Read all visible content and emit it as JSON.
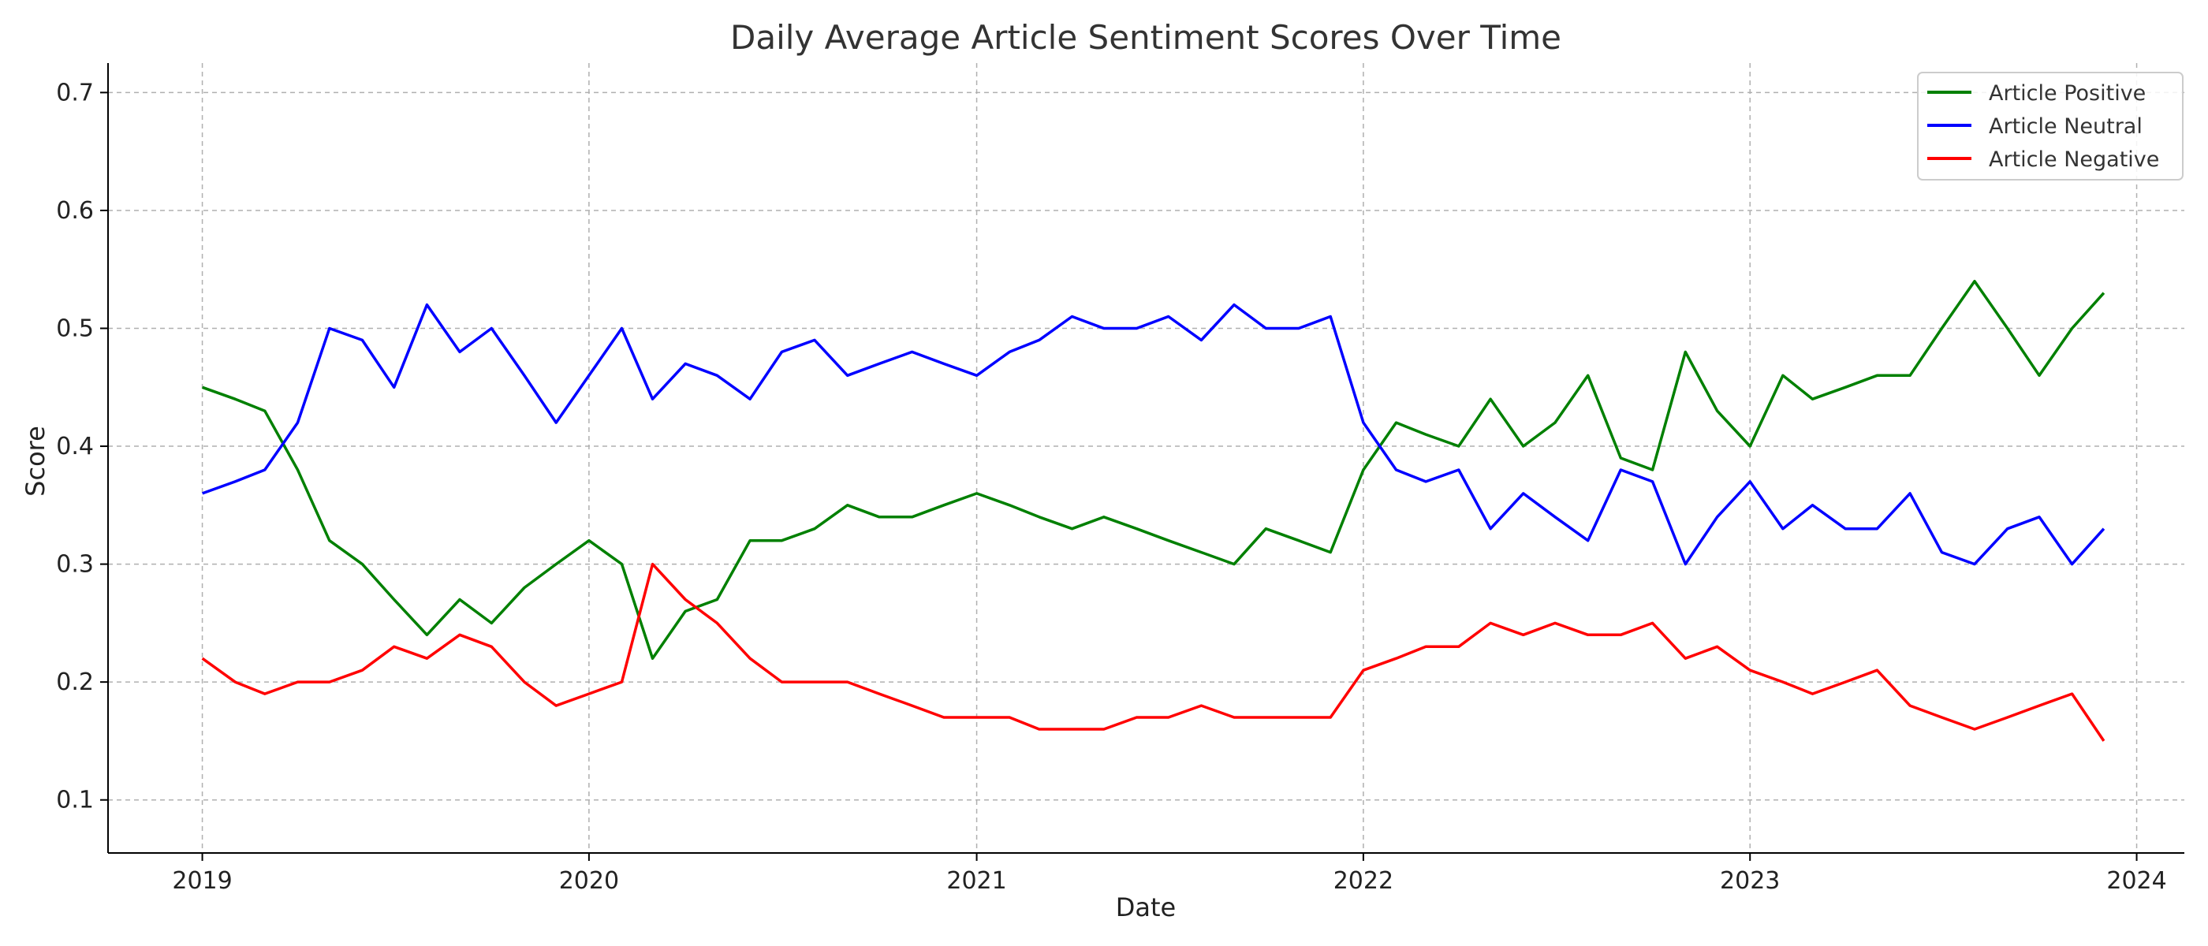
{
  "chart_data": {
    "type": "line",
    "title": "Daily Average Article Sentiment Scores Over Time",
    "xlabel": "Date",
    "ylabel": "Score",
    "xlim": [
      "2018-10-04",
      "2024-02-15"
    ],
    "ylim": [
      0.055,
      0.725
    ],
    "x_ticks": [
      "2019",
      "2020",
      "2021",
      "2022",
      "2023",
      "2024"
    ],
    "y_ticks": [
      "0.1",
      "0.2",
      "0.3",
      "0.4",
      "0.5",
      "0.6",
      "0.7"
    ],
    "grid": true,
    "legend_position": "top-right",
    "series": [
      {
        "name": "Article Positive",
        "color": "#008000",
        "x": [
          "2019-01-01",
          "2019-02-01",
          "2019-03-01",
          "2019-04-01",
          "2019-05-01",
          "2019-06-01",
          "2019-07-01",
          "2019-08-01",
          "2019-09-01",
          "2019-10-01",
          "2019-11-01",
          "2019-12-01",
          "2020-01-01",
          "2020-02-01",
          "2020-03-01",
          "2020-04-01",
          "2020-05-01",
          "2020-06-01",
          "2020-07-01",
          "2020-08-01",
          "2020-09-01",
          "2020-10-01",
          "2020-11-01",
          "2020-12-01",
          "2021-01-01",
          "2021-02-01",
          "2021-03-01",
          "2021-04-01",
          "2021-05-01",
          "2021-06-01",
          "2021-07-01",
          "2021-08-01",
          "2021-09-01",
          "2021-10-01",
          "2021-11-01",
          "2021-12-01",
          "2022-01-01",
          "2022-02-01",
          "2022-03-01",
          "2022-04-01",
          "2022-05-01",
          "2022-06-01",
          "2022-07-01",
          "2022-08-01",
          "2022-09-01",
          "2022-10-01",
          "2022-11-01",
          "2022-12-01",
          "2023-01-01",
          "2023-02-01",
          "2023-03-01",
          "2023-04-01",
          "2023-05-01",
          "2023-06-01",
          "2023-07-01",
          "2023-08-01",
          "2023-09-01",
          "2023-10-01",
          "2023-11-01",
          "2023-12-01"
        ],
        "values": [
          0.45,
          0.44,
          0.43,
          0.38,
          0.32,
          0.3,
          0.27,
          0.24,
          0.27,
          0.25,
          0.28,
          0.3,
          0.32,
          0.3,
          0.22,
          0.26,
          0.27,
          0.32,
          0.32,
          0.33,
          0.35,
          0.34,
          0.34,
          0.35,
          0.36,
          0.35,
          0.34,
          0.33,
          0.34,
          0.33,
          0.32,
          0.31,
          0.3,
          0.33,
          0.32,
          0.31,
          0.38,
          0.42,
          0.41,
          0.4,
          0.44,
          0.4,
          0.42,
          0.46,
          0.39,
          0.38,
          0.48,
          0.43,
          0.4,
          0.46,
          0.44,
          0.45,
          0.46,
          0.46,
          0.5,
          0.54,
          0.5,
          0.46,
          0.5,
          0.53
        ]
      },
      {
        "name": "Article Neutral",
        "color": "#0000ff",
        "x": [
          "2019-01-01",
          "2019-02-01",
          "2019-03-01",
          "2019-04-01",
          "2019-05-01",
          "2019-06-01",
          "2019-07-01",
          "2019-08-01",
          "2019-09-01",
          "2019-10-01",
          "2019-11-01",
          "2019-12-01",
          "2020-01-01",
          "2020-02-01",
          "2020-03-01",
          "2020-04-01",
          "2020-05-01",
          "2020-06-01",
          "2020-07-01",
          "2020-08-01",
          "2020-09-01",
          "2020-10-01",
          "2020-11-01",
          "2020-12-01",
          "2021-01-01",
          "2021-02-01",
          "2021-03-01",
          "2021-04-01",
          "2021-05-01",
          "2021-06-01",
          "2021-07-01",
          "2021-08-01",
          "2021-09-01",
          "2021-10-01",
          "2021-11-01",
          "2021-12-01",
          "2022-01-01",
          "2022-02-01",
          "2022-03-01",
          "2022-04-01",
          "2022-05-01",
          "2022-06-01",
          "2022-07-01",
          "2022-08-01",
          "2022-09-01",
          "2022-10-01",
          "2022-11-01",
          "2022-12-01",
          "2023-01-01",
          "2023-02-01",
          "2023-03-01",
          "2023-04-01",
          "2023-05-01",
          "2023-06-01",
          "2023-07-01",
          "2023-08-01",
          "2023-09-01",
          "2023-10-01",
          "2023-11-01",
          "2023-12-01"
        ],
        "values": [
          0.36,
          0.37,
          0.38,
          0.42,
          0.5,
          0.49,
          0.45,
          0.52,
          0.48,
          0.5,
          0.46,
          0.42,
          0.46,
          0.5,
          0.44,
          0.47,
          0.46,
          0.44,
          0.48,
          0.49,
          0.46,
          0.47,
          0.48,
          0.47,
          0.46,
          0.48,
          0.49,
          0.51,
          0.5,
          0.5,
          0.51,
          0.49,
          0.52,
          0.5,
          0.5,
          0.51,
          0.42,
          0.38,
          0.37,
          0.38,
          0.33,
          0.36,
          0.34,
          0.32,
          0.38,
          0.37,
          0.3,
          0.34,
          0.37,
          0.33,
          0.35,
          0.33,
          0.33,
          0.36,
          0.31,
          0.3,
          0.33,
          0.34,
          0.3,
          0.33
        ]
      },
      {
        "name": "Article Negative",
        "color": "#ff0000",
        "x": [
          "2019-01-01",
          "2019-02-01",
          "2019-03-01",
          "2019-04-01",
          "2019-05-01",
          "2019-06-01",
          "2019-07-01",
          "2019-08-01",
          "2019-09-01",
          "2019-10-01",
          "2019-11-01",
          "2019-12-01",
          "2020-01-01",
          "2020-02-01",
          "2020-03-01",
          "2020-04-01",
          "2020-05-01",
          "2020-06-01",
          "2020-07-01",
          "2020-08-01",
          "2020-09-01",
          "2020-10-01",
          "2020-11-01",
          "2020-12-01",
          "2021-01-01",
          "2021-02-01",
          "2021-03-01",
          "2021-04-01",
          "2021-05-01",
          "2021-06-01",
          "2021-07-01",
          "2021-08-01",
          "2021-09-01",
          "2021-10-01",
          "2021-11-01",
          "2021-12-01",
          "2022-01-01",
          "2022-02-01",
          "2022-03-01",
          "2022-04-01",
          "2022-05-01",
          "2022-06-01",
          "2022-07-01",
          "2022-08-01",
          "2022-09-01",
          "2022-10-01",
          "2022-11-01",
          "2022-12-01",
          "2023-01-01",
          "2023-02-01",
          "2023-03-01",
          "2023-04-01",
          "2023-05-01",
          "2023-06-01",
          "2023-07-01",
          "2023-08-01",
          "2023-09-01",
          "2023-10-01",
          "2023-11-01",
          "2023-12-01"
        ],
        "values": [
          0.22,
          0.2,
          0.19,
          0.2,
          0.2,
          0.21,
          0.23,
          0.22,
          0.24,
          0.23,
          0.2,
          0.18,
          0.19,
          0.2,
          0.3,
          0.27,
          0.25,
          0.22,
          0.2,
          0.2,
          0.2,
          0.19,
          0.18,
          0.17,
          0.17,
          0.17,
          0.16,
          0.16,
          0.16,
          0.17,
          0.17,
          0.18,
          0.17,
          0.17,
          0.17,
          0.17,
          0.21,
          0.22,
          0.23,
          0.23,
          0.25,
          0.24,
          0.25,
          0.24,
          0.24,
          0.25,
          0.22,
          0.23,
          0.21,
          0.2,
          0.19,
          0.2,
          0.21,
          0.18,
          0.17,
          0.16,
          0.17,
          0.18,
          0.19,
          0.15
        ]
      }
    ]
  }
}
